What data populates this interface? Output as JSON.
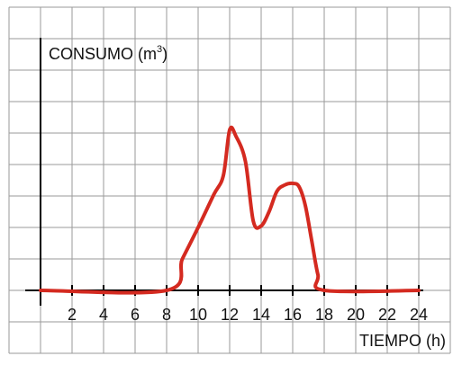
{
  "chart_data": {
    "type": "line",
    "title": "",
    "ylabel_main": "CONSUMO (m",
    "ylabel_sup": "3",
    "ylabel_close": ")",
    "xlabel": "TIEMPO (h)",
    "xlim": [
      0,
      24
    ],
    "ylim": [
      0,
      5
    ],
    "xticks": [
      2,
      4,
      6,
      8,
      10,
      12,
      14,
      16,
      18,
      20,
      22,
      24
    ],
    "xtick_labels": [
      "2",
      "4",
      "6",
      "8",
      "10",
      "12",
      "14",
      "16",
      "18",
      "20",
      "22",
      "24"
    ],
    "grid": true,
    "series": [
      {
        "color": "#d42a20",
        "x": [
          0,
          8,
          9,
          10,
          11,
          11.6,
          12,
          12.4,
          13,
          13.5,
          14,
          14.5,
          15,
          15.5,
          16,
          16.4,
          16.8,
          17.2,
          17.6,
          18,
          24
        ],
        "y": [
          0,
          0,
          1.0,
          2.0,
          3.05,
          3.65,
          5.1,
          4.9,
          4.1,
          2.2,
          2.05,
          2.5,
          3.15,
          3.35,
          3.4,
          3.3,
          2.7,
          1.6,
          0.5,
          0,
          0
        ]
      }
    ]
  }
}
